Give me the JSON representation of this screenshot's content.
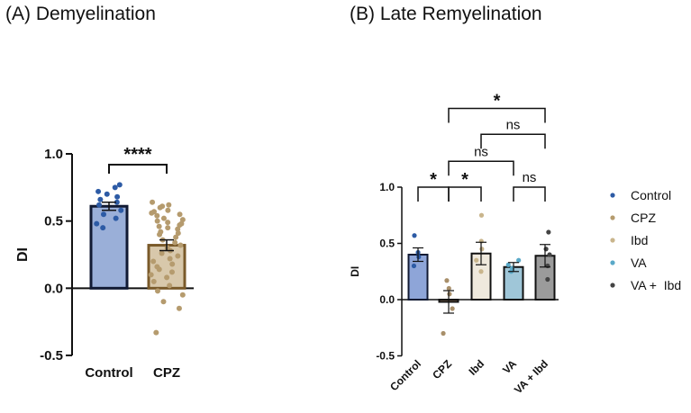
{
  "chart_data": [
    {
      "type": "bar",
      "title": "(A) Demyelination",
      "ylabel": "DI",
      "ylim": [
        -0.5,
        1.0
      ],
      "yticks": [
        "1.0",
        "0.5",
        "0.0",
        "-0.5"
      ],
      "ytick_values": [
        1.0,
        0.5,
        0.0,
        -0.5
      ],
      "categories": [
        "Control",
        "CPZ"
      ],
      "values": [
        0.61,
        0.32
      ],
      "errors": [
        0.03,
        0.04
      ],
      "colors": {
        "fill": [
          "#9aafd8",
          "#d8c8ab"
        ],
        "edge": [
          "#111a33",
          "#7a5a2a"
        ],
        "dots": [
          "#2d5ba5",
          "#b59b6e"
        ]
      },
      "points": [
        [
          0.77,
          0.75,
          0.72,
          0.7,
          0.68,
          0.66,
          0.64,
          0.62,
          0.58,
          0.55,
          0.52,
          0.48,
          0.45
        ],
        [
          0.64,
          0.62,
          0.61,
          0.6,
          0.58,
          0.57,
          0.56,
          0.55,
          0.54,
          0.52,
          0.51,
          0.5,
          0.49,
          0.48,
          0.47,
          0.46,
          0.45,
          0.44,
          0.42,
          0.41,
          0.4,
          0.38,
          0.36,
          0.34,
          0.32,
          0.3,
          0.28,
          0.26,
          0.24,
          0.22,
          0.2,
          0.18,
          0.16,
          0.14,
          0.12,
          0.1,
          0.08,
          0.05,
          0.02,
          -0.02,
          -0.05,
          -0.1,
          -0.15,
          -0.33
        ]
      ],
      "significance": [
        {
          "from": 0,
          "to": 1,
          "label": "****",
          "y": 0.92
        }
      ]
    },
    {
      "type": "bar",
      "title": "(B) Late Remyelination",
      "ylabel": "DI",
      "ylim": [
        -0.5,
        1.0
      ],
      "yticks": [
        "1.0",
        "0.5",
        "0.0",
        "-0.5"
      ],
      "ytick_values": [
        1.0,
        0.5,
        0.0,
        -0.5
      ],
      "categories": [
        "Control",
        "CPZ",
        "Ibd",
        "VA",
        "VA + Ibd"
      ],
      "values": [
        0.4,
        -0.02,
        0.41,
        0.29,
        0.39
      ],
      "errors": [
        0.06,
        0.1,
        0.1,
        0.04,
        0.1
      ],
      "colors": {
        "fill": [
          "#8ea5d8",
          "#9c7b5a",
          "#efe9dd",
          "#9fc6d8",
          "#9b9b9b"
        ],
        "edge": [
          "#111a33",
          "#111111",
          "#111111",
          "#111111",
          "#111111"
        ],
        "dots": [
          "#2d5ba5",
          "#a88f6a",
          "#c9b58c",
          "#5aa9c8",
          "#444444"
        ]
      },
      "points": [
        [
          0.57,
          0.42,
          0.38,
          0.3
        ],
        [
          0.17,
          0.1,
          0.05,
          -0.08,
          -0.3
        ],
        [
          0.75,
          0.52,
          0.45,
          0.35,
          0.25
        ],
        [
          0.35,
          0.31,
          0.28,
          0.25
        ],
        [
          0.6,
          0.45,
          0.4,
          0.3,
          0.18
        ]
      ],
      "significance": [
        {
          "from": 0,
          "to": 1,
          "label": "*",
          "y": 1.0
        },
        {
          "from": 1,
          "to": 2,
          "label": "*",
          "y": 1.0
        },
        {
          "from": 3,
          "to": 4,
          "label": "ns",
          "y": 1.0
        },
        {
          "from": 1,
          "to": 3,
          "label": "ns",
          "y": 1.23
        },
        {
          "from": 2,
          "to": 4,
          "label": "ns",
          "y": 1.47
        },
        {
          "from": 1,
          "to": 4,
          "label": "*",
          "y": 1.7
        }
      ],
      "legend": [
        {
          "label": "Control",
          "color": "#2d5ba5"
        },
        {
          "label": "CPZ",
          "color": "#b59b6e"
        },
        {
          "label": "Ibd",
          "color": "#c9b58c"
        },
        {
          "label": "VA",
          "color": "#5aa9c8"
        },
        {
          "label": "VA +  Ibd",
          "color": "#444444"
        }
      ]
    }
  ]
}
